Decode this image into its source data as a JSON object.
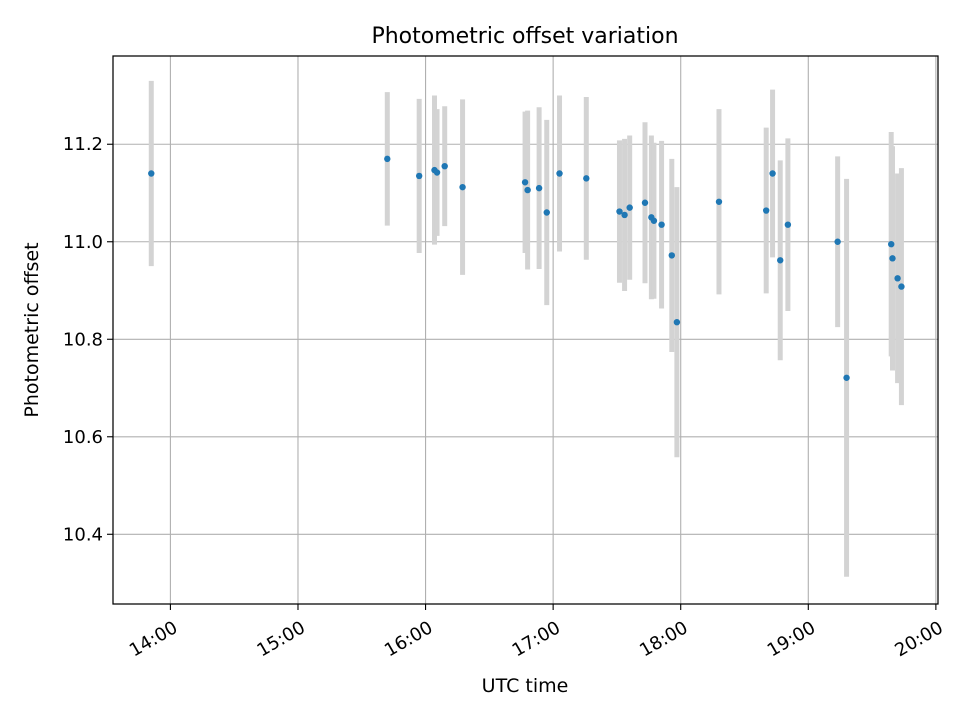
{
  "chart_data": {
    "type": "scatter",
    "title": "Photometric offset variation",
    "xlabel": "UTC time",
    "ylabel": "Photometric offset",
    "x_unit": "hours UTC",
    "xlim": [
      13.55,
      20.0167
    ],
    "ylim": [
      10.257,
      11.381
    ],
    "xticks": [
      {
        "value": 14,
        "label": "14:00"
      },
      {
        "value": 15,
        "label": "15:00"
      },
      {
        "value": 16,
        "label": "16:00"
      },
      {
        "value": 17,
        "label": "17:00"
      },
      {
        "value": 18,
        "label": "18:00"
      },
      {
        "value": 19,
        "label": "19:00"
      },
      {
        "value": 20,
        "label": "20:00"
      }
    ],
    "yticks": [
      {
        "value": 10.4,
        "label": "10.4"
      },
      {
        "value": 10.6,
        "label": "10.6"
      },
      {
        "value": 10.8,
        "label": "10.8"
      },
      {
        "value": 11.0,
        "label": "11.0"
      },
      {
        "value": 11.2,
        "label": "11.2"
      }
    ],
    "grid": true,
    "marker_color": "#1f77b4",
    "errorbar_color": "#d3d3d3",
    "points": [
      {
        "x": 13.85,
        "y": 11.14,
        "err": 0.19
      },
      {
        "x": 15.7,
        "y": 11.17,
        "err": 0.137
      },
      {
        "x": 15.95,
        "y": 11.135,
        "err": 0.158
      },
      {
        "x": 16.07,
        "y": 11.147,
        "err": 0.153
      },
      {
        "x": 16.09,
        "y": 11.142,
        "err": 0.13
      },
      {
        "x": 16.15,
        "y": 11.155,
        "err": 0.123
      },
      {
        "x": 16.29,
        "y": 11.112,
        "err": 0.18
      },
      {
        "x": 16.78,
        "y": 11.122,
        "err": 0.145
      },
      {
        "x": 16.8,
        "y": 11.106,
        "err": 0.163
      },
      {
        "x": 16.89,
        "y": 11.11,
        "err": 0.166
      },
      {
        "x": 16.95,
        "y": 11.06,
        "err": 0.19
      },
      {
        "x": 17.05,
        "y": 11.14,
        "err": 0.16
      },
      {
        "x": 17.26,
        "y": 11.13,
        "err": 0.167
      },
      {
        "x": 17.52,
        "y": 11.062,
        "err": 0.146
      },
      {
        "x": 17.56,
        "y": 11.055,
        "err": 0.156
      },
      {
        "x": 17.6,
        "y": 11.07,
        "err": 0.148
      },
      {
        "x": 17.72,
        "y": 11.08,
        "err": 0.165
      },
      {
        "x": 17.77,
        "y": 11.05,
        "err": 0.168
      },
      {
        "x": 17.79,
        "y": 11.043,
        "err": 0.16
      },
      {
        "x": 17.85,
        "y": 11.035,
        "err": 0.172
      },
      {
        "x": 17.93,
        "y": 10.972,
        "err": 0.198
      },
      {
        "x": 17.97,
        "y": 10.835,
        "err": 0.277
      },
      {
        "x": 18.3,
        "y": 11.082,
        "err": 0.19
      },
      {
        "x": 18.67,
        "y": 11.064,
        "err": 0.17
      },
      {
        "x": 18.72,
        "y": 11.14,
        "err": 0.172
      },
      {
        "x": 18.78,
        "y": 10.962,
        "err": 0.205
      },
      {
        "x": 18.84,
        "y": 11.035,
        "err": 0.177
      },
      {
        "x": 19.23,
        "y": 11.0,
        "err": 0.175
      },
      {
        "x": 19.3,
        "y": 10.721,
        "err": 0.408
      },
      {
        "x": 19.65,
        "y": 10.995,
        "err": 0.23
      },
      {
        "x": 19.66,
        "y": 10.966,
        "err": 0.23
      },
      {
        "x": 19.7,
        "y": 10.925,
        "err": 0.215
      },
      {
        "x": 19.73,
        "y": 10.908,
        "err": 0.243
      }
    ]
  }
}
